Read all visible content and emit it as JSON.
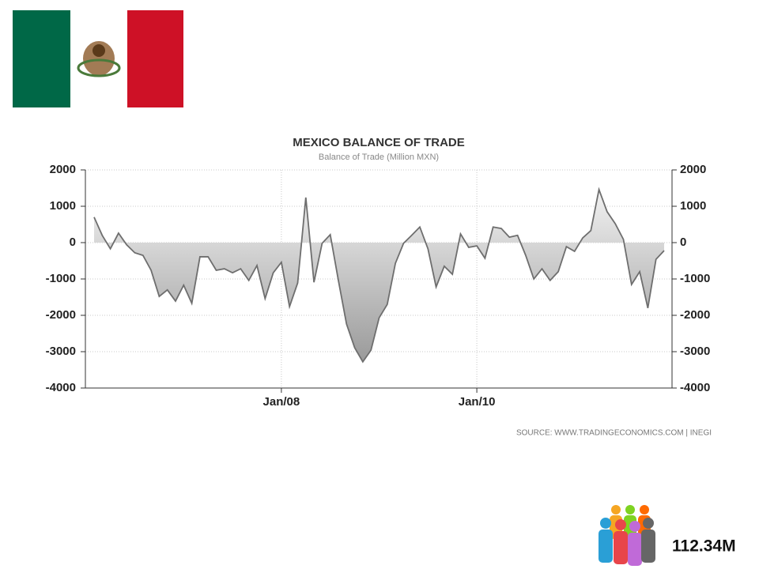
{
  "chart_data": {
    "type": "area",
    "title": "MEXICO BALANCE OF TRADE",
    "subtitle": "Balance of Trade (Million MXN)",
    "source": "SOURCE: WWW.TRADINGECONOMICS.COM  |  INEGI",
    "categories": [
      null,
      null,
      null,
      null,
      null,
      null,
      null,
      null,
      null,
      null,
      null,
      null,
      null,
      null,
      null,
      null,
      null,
      null,
      null,
      null,
      null,
      null,
      null,
      "Jan/08",
      null,
      null,
      null,
      null,
      null,
      null,
      null,
      null,
      null,
      null,
      null,
      null,
      null,
      null,
      null,
      null,
      null,
      null,
      null,
      null,
      null,
      null,
      null,
      "Jan/10",
      null,
      null,
      null,
      null,
      null,
      null,
      null,
      null,
      null,
      null,
      null,
      null,
      null,
      null,
      null,
      null,
      null,
      null,
      null,
      null,
      null,
      null,
      null
    ],
    "values": [
      700,
      200,
      -170,
      260,
      -60,
      -280,
      -350,
      -760,
      -1480,
      -1300,
      -1610,
      -1170,
      -1670,
      -390,
      -390,
      -760,
      -720,
      -830,
      -720,
      -1040,
      -630,
      -1540,
      -830,
      -540,
      -1760,
      -1110,
      1240,
      -1090,
      -20,
      220,
      -1040,
      -2240,
      -2890,
      -3280,
      -2960,
      -2070,
      -1700,
      -570,
      -20,
      200,
      430,
      -170,
      -1220,
      -650,
      -870,
      240,
      -130,
      -90,
      -430,
      430,
      390,
      150,
      200,
      -350,
      -1000,
      -720,
      -1040,
      -800,
      -110,
      -240,
      130,
      330,
      1460,
      850,
      520,
      90,
      -1150,
      -800,
      -1800,
      -460,
      -220
    ],
    "color": "#6e6e6e",
    "ylim": [
      -4000,
      2000
    ],
    "yticks": [
      -4000,
      -3000,
      -2000,
      -1000,
      0,
      1000,
      2000
    ],
    "y2lim": [
      -4000,
      2000
    ],
    "y2ticks": [
      -4000,
      -3000,
      -2000,
      -1000,
      0,
      1000,
      2000
    ],
    "grid": true
  },
  "population": {
    "label": "112.34M"
  }
}
